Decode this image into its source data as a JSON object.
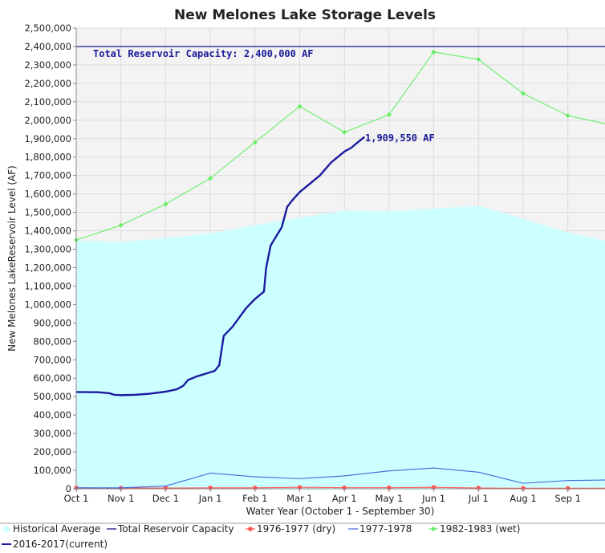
{
  "chart_data": {
    "type": "line",
    "title": "New Melones Lake Storage Levels",
    "xlabel": "Water Year (October 1 - September 30)",
    "ylabel": "New Melones LakeReservoir Level (AF)",
    "x_ticks": [
      "Oct 1",
      "Nov 1",
      "Dec 1",
      "Jan 1",
      "Feb 1",
      "Mar 1",
      "Apr 1",
      "May 1",
      "Jun 1",
      "Jul 1",
      "Aug 1",
      "Sep 1"
    ],
    "ylim": [
      0,
      2500000
    ],
    "y_tick_step": 100000,
    "grid": true,
    "legend_position": "bottom",
    "series": [
      {
        "name": "Historical Average",
        "style": "area",
        "color": "#ccffff",
        "points": [
          [
            0,
            1345000
          ],
          [
            1,
            1340000
          ],
          [
            2,
            1360000
          ],
          [
            3,
            1385000
          ],
          [
            4,
            1430000
          ],
          [
            5,
            1470000
          ],
          [
            6,
            1510000
          ],
          [
            7,
            1505000
          ],
          [
            8,
            1520000
          ],
          [
            9,
            1535000
          ],
          [
            10,
            1465000
          ],
          [
            11,
            1390000
          ],
          [
            11.95,
            1340000
          ]
        ]
      },
      {
        "name": "Total Reservoir Capacity",
        "style": "line",
        "color": "#000080",
        "points": [
          [
            0,
            2400000
          ],
          [
            11.95,
            2400000
          ]
        ]
      },
      {
        "name": "1976-1977 (dry)",
        "style": "line-markers",
        "color": "#ff5555",
        "points": [
          [
            0,
            5000
          ],
          [
            1,
            4000
          ],
          [
            2,
            4000
          ],
          [
            3,
            5000
          ],
          [
            4,
            5000
          ],
          [
            5,
            8000
          ],
          [
            6,
            6000
          ],
          [
            7,
            6000
          ],
          [
            8,
            8000
          ],
          [
            9,
            4000
          ],
          [
            10,
            3000
          ],
          [
            11,
            3000
          ],
          [
            11.95,
            3000
          ]
        ]
      },
      {
        "name": "1977-1978",
        "style": "line",
        "color": "#4466dd",
        "points": [
          [
            0,
            5000
          ],
          [
            1,
            5000
          ],
          [
            2,
            15000
          ],
          [
            3,
            85000
          ],
          [
            4,
            65000
          ],
          [
            5,
            55000
          ],
          [
            6,
            70000
          ],
          [
            7,
            97000
          ],
          [
            8,
            113000
          ],
          [
            9,
            90000
          ],
          [
            10,
            30000
          ],
          [
            11,
            45000
          ],
          [
            11.95,
            48000
          ]
        ]
      },
      {
        "name": "1982-1983 (wet)",
        "style": "line-markers",
        "color": "#66ee66",
        "points": [
          [
            0,
            1350000
          ],
          [
            1,
            1430000
          ],
          [
            2,
            1545000
          ],
          [
            3,
            1685000
          ],
          [
            4,
            1880000
          ],
          [
            5,
            2075000
          ],
          [
            6,
            1935000
          ],
          [
            7,
            2030000
          ],
          [
            8,
            2370000
          ],
          [
            9,
            2330000
          ],
          [
            10,
            2145000
          ],
          [
            11,
            2025000
          ],
          [
            11.95,
            1975000
          ]
        ]
      },
      {
        "name": "2016-2017(current)",
        "style": "line-thick",
        "color": "#1a1aa0",
        "points": [
          [
            0,
            525000
          ],
          [
            0.5,
            524000
          ],
          [
            0.75,
            518000
          ],
          [
            0.85,
            510000
          ],
          [
            1,
            508000
          ],
          [
            1.3,
            510000
          ],
          [
            1.6,
            515000
          ],
          [
            2,
            527000
          ],
          [
            2.25,
            540000
          ],
          [
            2.4,
            560000
          ],
          [
            2.5,
            590000
          ],
          [
            2.7,
            610000
          ],
          [
            2.9,
            625000
          ],
          [
            3.1,
            640000
          ],
          [
            3.2,
            670000
          ],
          [
            3.3,
            830000
          ],
          [
            3.5,
            880000
          ],
          [
            3.65,
            930000
          ],
          [
            3.8,
            980000
          ],
          [
            4.0,
            1030000
          ],
          [
            4.2,
            1070000
          ],
          [
            4.25,
            1200000
          ],
          [
            4.35,
            1320000
          ],
          [
            4.5,
            1380000
          ],
          [
            4.6,
            1420000
          ],
          [
            4.72,
            1530000
          ],
          [
            4.85,
            1570000
          ],
          [
            5,
            1610000
          ],
          [
            5.2,
            1650000
          ],
          [
            5.45,
            1700000
          ],
          [
            5.7,
            1770000
          ],
          [
            5.9,
            1810000
          ],
          [
            6.0,
            1830000
          ],
          [
            6.15,
            1850000
          ],
          [
            6.3,
            1880000
          ],
          [
            6.45,
            1909550
          ]
        ]
      }
    ],
    "annotations": {
      "capacity_label": "Total Reservoir Capacity: 2,400,000 AF",
      "current_label": "1,909,550 AF"
    }
  }
}
